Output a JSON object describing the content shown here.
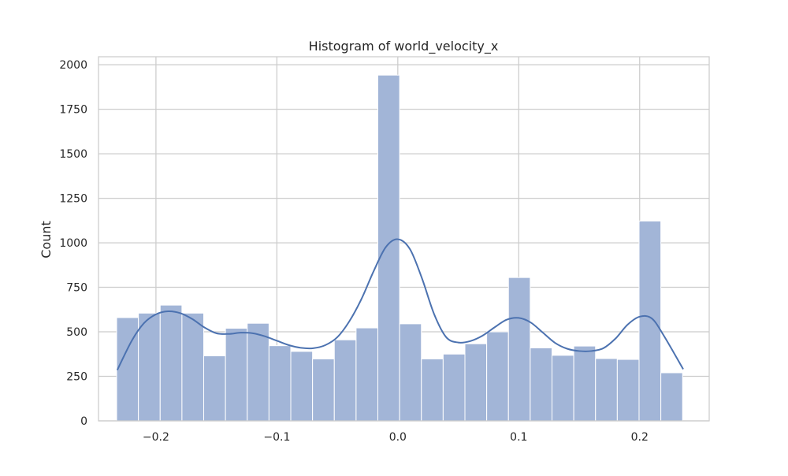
{
  "chart_data": {
    "type": "bar",
    "title": "Histogram of world_velocity_x",
    "xlabel": "",
    "ylabel": "Count",
    "xlim": [
      -0.2475,
      0.2575
    ],
    "ylim": [
      0,
      2045
    ],
    "grid": true,
    "x_ticks": [
      -0.2,
      -0.1,
      0.0,
      0.1,
      0.2
    ],
    "x_tick_labels": [
      "−0.2",
      "−0.1",
      "0.0",
      "0.1",
      "0.2"
    ],
    "y_ticks": [
      0,
      250,
      500,
      750,
      1000,
      1250,
      1500,
      1750,
      2000
    ],
    "y_tick_labels": [
      "0",
      "250",
      "500",
      "750",
      "1000",
      "1250",
      "1500",
      "1750",
      "2000"
    ],
    "bins": {
      "start": -0.2325,
      "width": 0.018,
      "counts": [
        580,
        605,
        650,
        605,
        365,
        520,
        548,
        422,
        390,
        348,
        455,
        522,
        1942,
        545,
        348,
        375,
        433,
        500,
        805,
        410,
        368,
        420,
        350,
        345,
        1122,
        270
      ]
    },
    "kde": {
      "x": [
        -0.232,
        -0.22,
        -0.21,
        -0.2,
        -0.19,
        -0.18,
        -0.17,
        -0.16,
        -0.15,
        -0.14,
        -0.13,
        -0.12,
        -0.11,
        -0.1,
        -0.09,
        -0.08,
        -0.07,
        -0.06,
        -0.05,
        -0.04,
        -0.03,
        -0.02,
        -0.01,
        0.0,
        0.01,
        0.02,
        0.03,
        0.04,
        0.05,
        0.06,
        0.07,
        0.08,
        0.09,
        0.1,
        0.11,
        0.12,
        0.13,
        0.14,
        0.15,
        0.16,
        0.17,
        0.18,
        0.19,
        0.2,
        0.21,
        0.22,
        0.236
      ],
      "y": [
        285,
        450,
        548,
        598,
        615,
        605,
        572,
        525,
        492,
        488,
        495,
        492,
        475,
        450,
        425,
        410,
        408,
        425,
        470,
        560,
        685,
        840,
        975,
        1020,
        965,
        800,
        600,
        470,
        440,
        448,
        478,
        525,
        568,
        578,
        552,
        495,
        438,
        405,
        392,
        392,
        408,
        462,
        540,
        585,
        575,
        478,
        290
      ]
    },
    "colors": {
      "bar_fill": "#a2b5d7",
      "bar_edge": "#ffffff",
      "kde_line": "#4c72b0",
      "grid": "#cccccc",
      "frame": "#cccccc"
    }
  }
}
